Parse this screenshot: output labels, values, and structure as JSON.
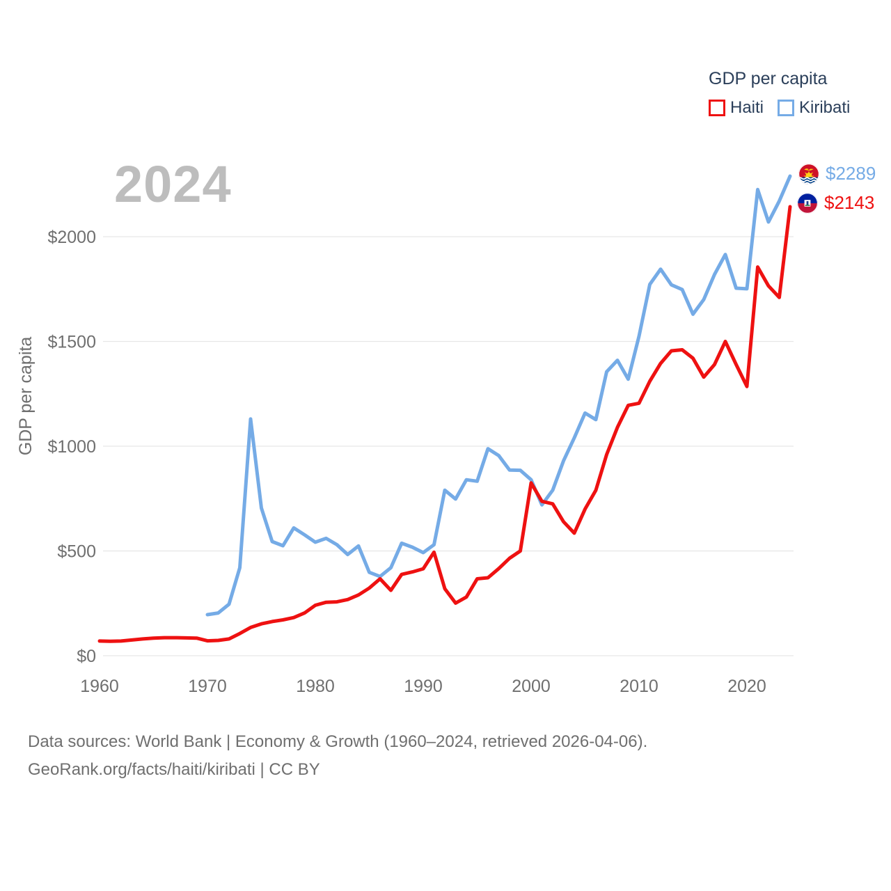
{
  "watermark": "2024",
  "legend": {
    "title": "GDP per capita",
    "items": [
      {
        "label": "Haiti",
        "color": "#ee1111"
      },
      {
        "label": "Kiribati",
        "color": "#75abe6"
      }
    ]
  },
  "end_labels": [
    {
      "series": "Kiribati",
      "value_label": "$2289",
      "series_index": 1,
      "flag": "kiribati-flag-icon"
    },
    {
      "series": "Haiti",
      "value_label": "$2143",
      "series_index": 0,
      "flag": "haiti-flag-icon"
    }
  ],
  "footer": {
    "line1": "Data sources: World Bank | Economy & Growth (1960–2024, retrieved 2026-04-06).",
    "line2": "GeoRank.org/facts/haiti/kiribati | CC BY"
  },
  "colors": {
    "haiti_line": "#ee1111",
    "kiribati_line": "#75abe6",
    "gridline": "#e6e6e6",
    "axis_text": "#6f6f6f",
    "legend_text": "#2b3f5a",
    "watermark": "#bdbdbd"
  },
  "chart_data": {
    "type": "line",
    "title": "GDP per capita",
    "xlabel": "",
    "ylabel": "GDP per capita",
    "xlim": [
      1960,
      2024
    ],
    "ylim": [
      0,
      2400
    ],
    "grid": "horizontal",
    "legend_position": "top-right",
    "x_ticks": [
      1960,
      1970,
      1980,
      1990,
      2000,
      2010,
      2020
    ],
    "y_ticks": [
      {
        "value": 0,
        "label": "$0"
      },
      {
        "value": 500,
        "label": "$500"
      },
      {
        "value": 1000,
        "label": "$1000"
      },
      {
        "value": 1500,
        "label": "$1500"
      },
      {
        "value": 2000,
        "label": "$2000"
      }
    ],
    "series": [
      {
        "name": "Haiti",
        "color": "#ee1111",
        "start_year": 1960,
        "end_year": 2024,
        "end_value_label": "$2143",
        "values": [
          70,
          69,
          70,
          75,
          80,
          84,
          86,
          86,
          85,
          84,
          71,
          73,
          80,
          106,
          135,
          152,
          163,
          171,
          182,
          204,
          241,
          255,
          257,
          268,
          290,
          323,
          367,
          312,
          388,
          400,
          415,
          494,
          320,
          251,
          280,
          367,
          372,
          416,
          465,
          500,
          825,
          737,
          725,
          640,
          585,
          700,
          790,
          960,
          1090,
          1195,
          1205,
          1310,
          1395,
          1455,
          1460,
          1420,
          1330,
          1390,
          1500,
          1390,
          1285,
          1855,
          1765,
          1710,
          2143
        ]
      },
      {
        "name": "Kiribati",
        "color": "#75abe6",
        "start_year": 1970,
        "end_year": 2024,
        "end_value_label": "$2289",
        "values": [
          196,
          204,
          246,
          420,
          1130,
          705,
          545,
          525,
          610,
          577,
          542,
          560,
          530,
          483,
          524,
          398,
          378,
          420,
          537,
          518,
          492,
          530,
          790,
          748,
          840,
          833,
          988,
          955,
          886,
          885,
          840,
          720,
          790,
          930,
          1040,
          1158,
          1127,
          1355,
          1410,
          1320,
          1525,
          1772,
          1845,
          1770,
          1748,
          1630,
          1700,
          1820,
          1915,
          1754,
          1751,
          2225,
          2070,
          2170,
          2289
        ]
      }
    ]
  }
}
